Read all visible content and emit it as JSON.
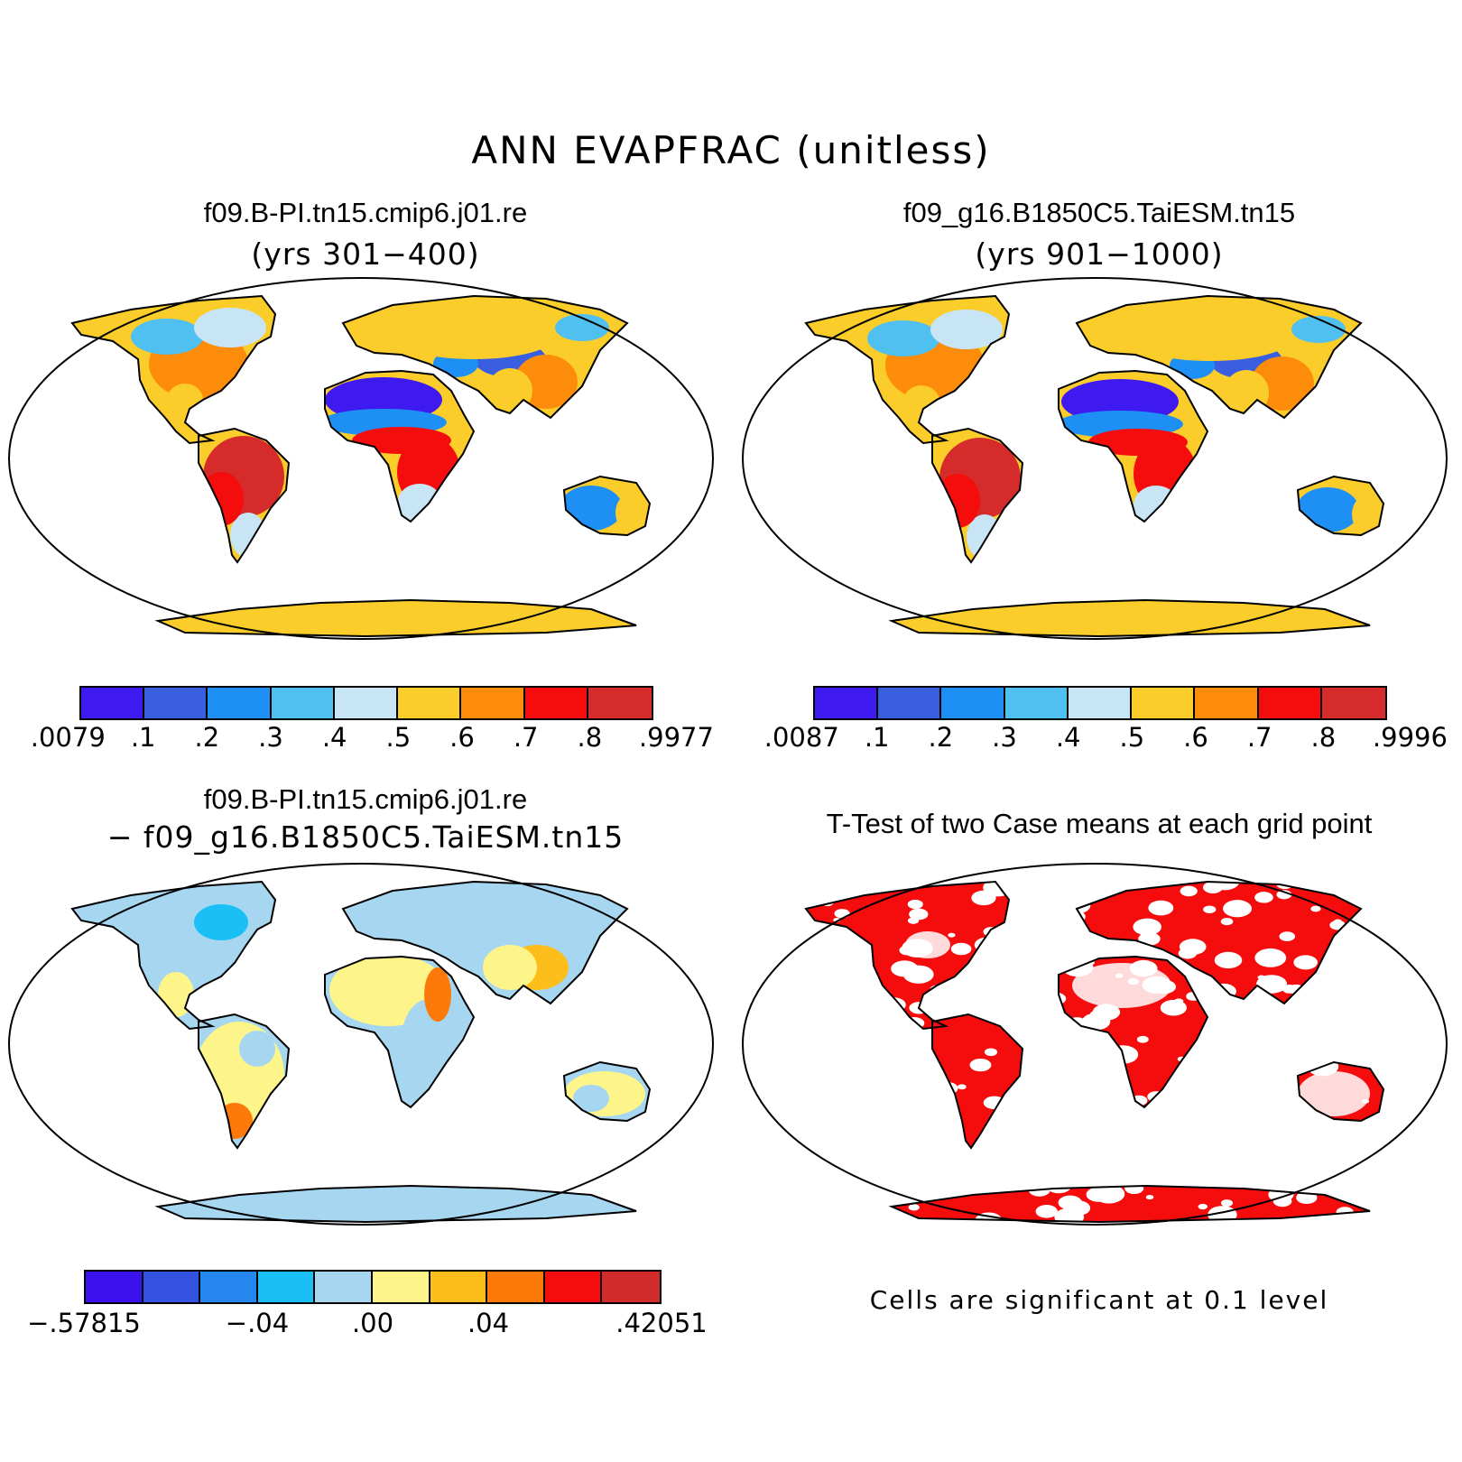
{
  "main_title": "ANN EVAPFRAC (unitless)",
  "panels": [
    {
      "title": "f09.B-PI.tn15.cmip6.j01.re",
      "years": "(yrs 301−400)",
      "colorbar": {
        "colors": [
          "#3f1af0",
          "#3a5ee0",
          "#1e90f5",
          "#4fc0f0",
          "#c7e5f5",
          "#fbcd2b",
          "#fd8c0a",
          "#f50d0d",
          "#d52b2b"
        ],
        "labels": [
          ".0079",
          ".1",
          ".2",
          ".3",
          ".4",
          ".5",
          ".6",
          ".7",
          ".8",
          ".9977"
        ]
      }
    },
    {
      "title": "f09_g16.B1850C5.TaiESM.tn15",
      "years": "(yrs 901−1000)",
      "colorbar": {
        "colors": [
          "#3f1af0",
          "#3a5ee0",
          "#1e90f5",
          "#4fc0f0",
          "#c7e5f5",
          "#fbcd2b",
          "#fd8c0a",
          "#f50d0d",
          "#d52b2b"
        ],
        "labels": [
          ".0087",
          ".1",
          ".2",
          ".3",
          ".4",
          ".5",
          ".6",
          ".7",
          ".8",
          ".9996"
        ]
      }
    },
    {
      "title": "f09.B-PI.tn15.cmip6.j01.re",
      "subtitle": "− f09_g16.B1850C5.TaiESM.tn15",
      "colorbar": {
        "colors": [
          "#3b12ee",
          "#3452e0",
          "#2686f0",
          "#19bff5",
          "#a6d6f0",
          "#fdf58a",
          "#fdbd1a",
          "#fd7a0a",
          "#f50d0d",
          "#d22b2b"
        ],
        "labels": [
          "−.57815",
          "−.04",
          ".00",
          ".04",
          ".42051"
        ]
      }
    },
    {
      "title": "T-Test of two Case means at each grid point",
      "note": "Cells are significant at 0.1 level"
    }
  ]
}
